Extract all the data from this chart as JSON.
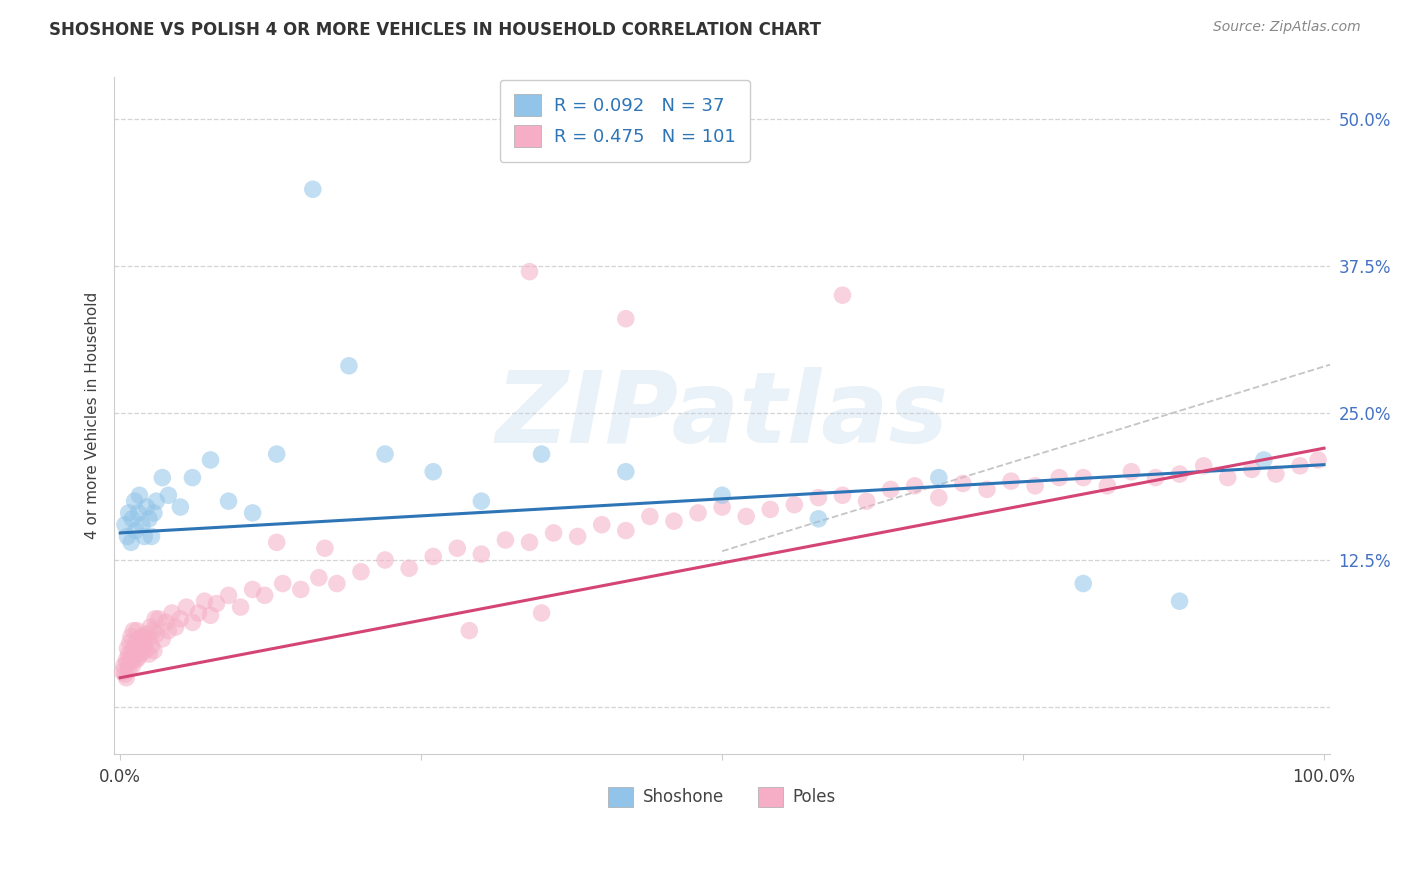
{
  "title": "SHOSHONE VS POLISH 4 OR MORE VEHICLES IN HOUSEHOLD CORRELATION CHART",
  "source": "Source: ZipAtlas.com",
  "ylabel": "4 or more Vehicles in Household",
  "xlim": [
    -0.005,
    1.005
  ],
  "ylim": [
    -0.04,
    0.535
  ],
  "blue_color": "#91c4e8",
  "pink_color": "#f5aec5",
  "blue_line_color": "#2e75b6",
  "pink_line_color": "#d44475",
  "grid_color": "#d0d0d0",
  "tick_color": "#4472c4",
  "label_color": "#404040",
  "legend_R1": "0.092",
  "legend_N1": "37",
  "legend_R2": "0.475",
  "legend_N2": "101",
  "blue_slope": 0.058,
  "blue_intercept": 0.148,
  "pink_slope": 0.195,
  "pink_intercept": 0.025,
  "shoshone_x": [
    0.004,
    0.006,
    0.007,
    0.009,
    0.01,
    0.012,
    0.013,
    0.015,
    0.016,
    0.018,
    0.02,
    0.022,
    0.024,
    0.026,
    0.028,
    0.03,
    0.035,
    0.04,
    0.05,
    0.06,
    0.075,
    0.09,
    0.11,
    0.13,
    0.16,
    0.19,
    0.22,
    0.26,
    0.3,
    0.35,
    0.42,
    0.5,
    0.58,
    0.68,
    0.8,
    0.88,
    0.95
  ],
  "shoshone_y": [
    0.155,
    0.145,
    0.165,
    0.14,
    0.16,
    0.175,
    0.15,
    0.165,
    0.18,
    0.155,
    0.145,
    0.17,
    0.16,
    0.145,
    0.165,
    0.175,
    0.195,
    0.18,
    0.17,
    0.195,
    0.21,
    0.175,
    0.165,
    0.215,
    0.44,
    0.29,
    0.215,
    0.2,
    0.175,
    0.215,
    0.2,
    0.18,
    0.16,
    0.195,
    0.105,
    0.09,
    0.21
  ],
  "poles_x": [
    0.002,
    0.003,
    0.004,
    0.005,
    0.005,
    0.006,
    0.006,
    0.007,
    0.007,
    0.008,
    0.008,
    0.009,
    0.009,
    0.01,
    0.01,
    0.011,
    0.011,
    0.012,
    0.012,
    0.013,
    0.013,
    0.014,
    0.015,
    0.015,
    0.016,
    0.017,
    0.018,
    0.019,
    0.02,
    0.021,
    0.022,
    0.023,
    0.024,
    0.025,
    0.026,
    0.027,
    0.028,
    0.029,
    0.03,
    0.032,
    0.035,
    0.038,
    0.04,
    0.043,
    0.046,
    0.05,
    0.055,
    0.06,
    0.065,
    0.07,
    0.075,
    0.08,
    0.09,
    0.1,
    0.11,
    0.12,
    0.135,
    0.15,
    0.165,
    0.18,
    0.2,
    0.22,
    0.24,
    0.26,
    0.28,
    0.3,
    0.32,
    0.34,
    0.36,
    0.38,
    0.4,
    0.42,
    0.44,
    0.46,
    0.48,
    0.5,
    0.52,
    0.54,
    0.56,
    0.58,
    0.6,
    0.62,
    0.64,
    0.66,
    0.68,
    0.7,
    0.72,
    0.74,
    0.76,
    0.78,
    0.8,
    0.82,
    0.84,
    0.86,
    0.88,
    0.9,
    0.92,
    0.94,
    0.96,
    0.98,
    0.995
  ],
  "poles_y": [
    0.03,
    0.035,
    0.028,
    0.04,
    0.025,
    0.038,
    0.05,
    0.032,
    0.045,
    0.038,
    0.055,
    0.042,
    0.06,
    0.035,
    0.048,
    0.042,
    0.065,
    0.05,
    0.045,
    0.055,
    0.04,
    0.065,
    0.048,
    0.042,
    0.058,
    0.045,
    0.06,
    0.05,
    0.055,
    0.048,
    0.062,
    0.058,
    0.045,
    0.068,
    0.052,
    0.065,
    0.048,
    0.075,
    0.062,
    0.075,
    0.058,
    0.072,
    0.065,
    0.08,
    0.068,
    0.075,
    0.085,
    0.072,
    0.08,
    0.09,
    0.078,
    0.088,
    0.095,
    0.085,
    0.1,
    0.095,
    0.105,
    0.1,
    0.11,
    0.105,
    0.115,
    0.125,
    0.118,
    0.128,
    0.135,
    0.13,
    0.142,
    0.14,
    0.148,
    0.145,
    0.155,
    0.15,
    0.162,
    0.158,
    0.165,
    0.17,
    0.162,
    0.168,
    0.172,
    0.178,
    0.18,
    0.175,
    0.185,
    0.188,
    0.178,
    0.19,
    0.185,
    0.192,
    0.188,
    0.195,
    0.195,
    0.188,
    0.2,
    0.195,
    0.198,
    0.205,
    0.195,
    0.202,
    0.198,
    0.205,
    0.21
  ],
  "poles_outlier_x": [
    0.34,
    0.6,
    0.42,
    0.13,
    0.17,
    0.35,
    0.29
  ],
  "poles_outlier_y": [
    0.37,
    0.35,
    0.33,
    0.14,
    0.135,
    0.08,
    0.065
  ]
}
